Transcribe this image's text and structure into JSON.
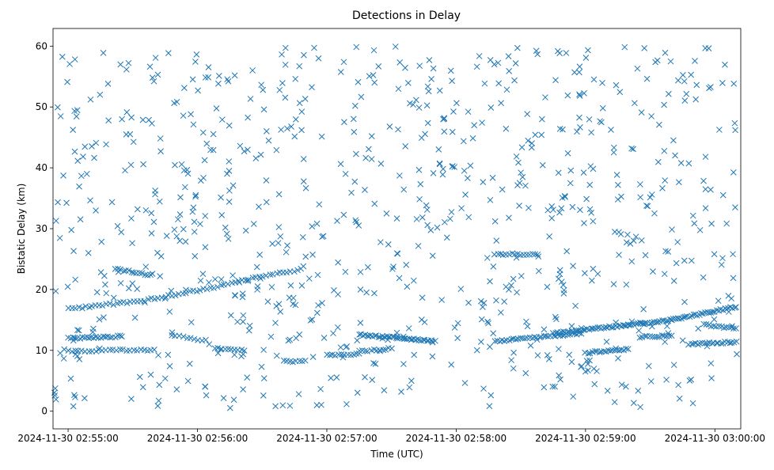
{
  "chart_data": {
    "type": "scatter",
    "title": "Detections in Delay",
    "xlabel": "Time (UTC)",
    "ylabel": "Bistatic Delay (km)",
    "marker": "x",
    "color": "#1f77b4",
    "grid": false,
    "xlim": [
      "2024-11-30 02:54:53",
      "2024-11-30 03:00:12"
    ],
    "ylim": [
      -2.9,
      62.9
    ],
    "x_ticks": [
      "2024-11-30 02:55:00",
      "2024-11-30 02:56:00",
      "2024-11-30 02:57:00",
      "2024-11-30 02:58:00",
      "2024-11-30 02:59:00",
      "2024-11-30 03:00:00"
    ],
    "y_ticks": [
      0,
      10,
      20,
      30,
      40,
      50,
      60
    ],
    "tracks": [
      {
        "x": [
          "2024-11-30 02:55:00",
          "2024-11-30 02:55:35",
          "2024-11-30 02:56:10",
          "2024-11-30 02:56:25",
          "2024-11-30 02:56:40",
          "2024-11-30 02:56:48"
        ],
        "y": [
          16.8,
          18.2,
          20.5,
          21.8,
          22.8,
          23.3
        ],
        "count": 68
      },
      {
        "x": [
          "2024-11-30 02:55:00",
          "2024-11-30 02:55:25"
        ],
        "y": [
          12.0,
          12.3
        ],
        "count": 24
      },
      {
        "x": [
          "2024-11-30 02:55:00",
          "2024-11-30 02:55:40"
        ],
        "y": [
          9.9,
          10.1
        ],
        "count": 26
      },
      {
        "x": [
          "2024-11-30 02:55:22",
          "2024-11-30 02:55:38"
        ],
        "y": [
          23.4,
          22.4
        ],
        "count": 14
      },
      {
        "x": [
          "2024-11-30 02:55:48",
          "2024-11-30 02:56:04"
        ],
        "y": [
          12.6,
          11.6
        ],
        "count": 10
      },
      {
        "x": [
          "2024-11-30 02:56:08",
          "2024-11-30 02:56:22"
        ],
        "y": [
          10.3,
          10.0
        ],
        "count": 10
      },
      {
        "x": [
          "2024-11-30 02:56:40",
          "2024-11-30 02:56:50"
        ],
        "y": [
          8.2,
          8.2
        ],
        "count": 8
      },
      {
        "x": [
          "2024-11-30 02:57:00",
          "2024-11-30 02:57:15"
        ],
        "y": [
          9.2,
          9.4
        ],
        "count": 12
      },
      {
        "x": [
          "2024-11-30 02:57:15",
          "2024-11-30 02:57:50"
        ],
        "y": [
          12.6,
          11.5
        ],
        "count": 40
      },
      {
        "x": [
          "2024-11-30 02:57:15",
          "2024-11-30 02:57:30"
        ],
        "y": [
          9.8,
          10.3
        ],
        "count": 12
      },
      {
        "x": [
          "2024-11-30 02:58:18",
          "2024-11-30 02:58:58"
        ],
        "y": [
          11.5,
          12.8
        ],
        "count": 38
      },
      {
        "x": [
          "2024-11-30 02:58:18",
          "2024-11-30 02:58:38"
        ],
        "y": [
          25.8,
          25.8
        ],
        "count": 16
      },
      {
        "x": [
          "2024-11-30 02:58:45",
          "2024-11-30 02:59:40"
        ],
        "y": [
          12.8,
          15.0
        ],
        "count": 60
      },
      {
        "x": [
          "2024-11-30 02:59:40",
          "2024-11-30 03:00:10"
        ],
        "y": [
          15.0,
          17.2
        ],
        "count": 34
      },
      {
        "x": [
          "2024-11-30 02:59:00",
          "2024-11-30 02:59:20"
        ],
        "y": [
          9.6,
          10.2
        ],
        "count": 20
      },
      {
        "x": [
          "2024-11-30 02:59:25",
          "2024-11-30 02:59:40"
        ],
        "y": [
          12.2,
          12.4
        ],
        "count": 14
      },
      {
        "x": [
          "2024-11-30 02:59:55",
          "2024-11-30 03:00:10"
        ],
        "y": [
          14.2,
          13.6
        ],
        "count": 14
      },
      {
        "x": [
          "2024-11-30 02:59:48",
          "2024-11-30 03:00:10"
        ],
        "y": [
          11.0,
          11.4
        ],
        "count": 22
      }
    ],
    "clutter": {
      "x_range": [
        "2024-11-30 02:54:53",
        "2024-11-30 03:00:12"
      ],
      "y_range": [
        0.5,
        60
      ],
      "count": 820
    }
  }
}
